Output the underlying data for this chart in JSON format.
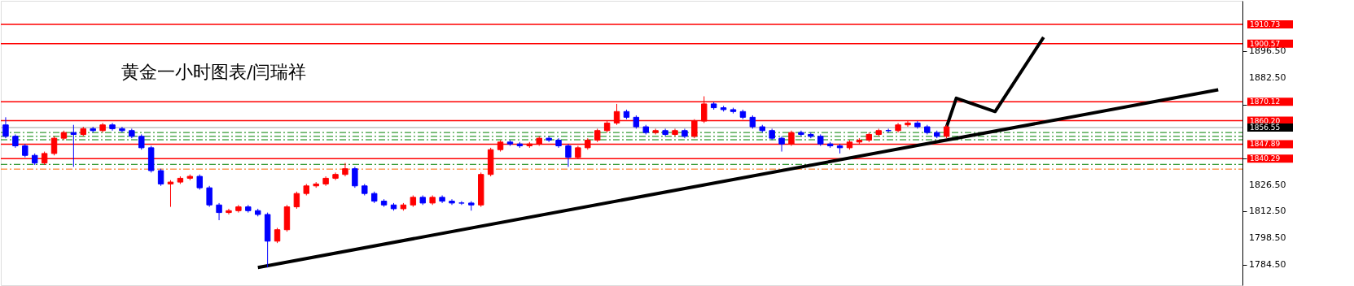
{
  "chart_data": {
    "type": "candlestick",
    "title": "黄金一小时图表/闫瑞祥",
    "categories": [
      null,
      null,
      null,
      null,
      null,
      null,
      null,
      null,
      null,
      null,
      null,
      null,
      null,
      null,
      null,
      null,
      null,
      null,
      null,
      null,
      null,
      null,
      null,
      null,
      null,
      null,
      null,
      null,
      null,
      null,
      null,
      null,
      null,
      null,
      null,
      null,
      null,
      null,
      null,
      null,
      null,
      null,
      null,
      null,
      null,
      null,
      null,
      null,
      null,
      null,
      null,
      null,
      null,
      null,
      null,
      null,
      null,
      null,
      null,
      null,
      null,
      null,
      null,
      null,
      null,
      null,
      null,
      null,
      null,
      null,
      null,
      null,
      null,
      null,
      null,
      null,
      null,
      null,
      null,
      null,
      null,
      null,
      null,
      null,
      null,
      null,
      null,
      null,
      null,
      null,
      null,
      null,
      null,
      null,
      null,
      null,
      null,
      null,
      null,
      null,
      null,
      null,
      null,
      null,
      null,
      null,
      null,
      null,
      null,
      null,
      null,
      null,
      null,
      null,
      null,
      null,
      null,
      null,
      null,
      null,
      null,
      null,
      null,
      null,
      null,
      null,
      null,
      null
    ],
    "ohlc": [
      [
        1858,
        1862,
        1851,
        1852
      ],
      [
        1852,
        1853,
        1846,
        1847
      ],
      [
        1847,
        1848,
        1841,
        1842
      ],
      [
        1842,
        1843,
        1837,
        1838
      ],
      [
        1838,
        1844,
        1837,
        1843
      ],
      [
        1843,
        1852,
        1842,
        1851
      ],
      [
        1851,
        1855,
        1850,
        1854
      ],
      [
        1854,
        1858,
        1836,
        1853
      ],
      [
        1853,
        1857,
        1852,
        1856
      ],
      [
        1856,
        1857,
        1854,
        1855
      ],
      [
        1855,
        1859,
        1854,
        1858
      ],
      [
        1858,
        1859,
        1855,
        1856
      ],
      [
        1856,
        1857,
        1854,
        1855
      ],
      [
        1855,
        1856,
        1851,
        1852
      ],
      [
        1852,
        1853,
        1845,
        1846
      ],
      [
        1846,
        1847,
        1833,
        1834
      ],
      [
        1834,
        1835,
        1826,
        1827
      ],
      [
        1827,
        1829,
        1815,
        1828
      ],
      [
        1828,
        1831,
        1827,
        1830
      ],
      [
        1830,
        1832,
        1829,
        1831
      ],
      [
        1831,
        1832,
        1824,
        1825
      ],
      [
        1825,
        1826,
        1815,
        1816
      ],
      [
        1816,
        1817,
        1808,
        1812
      ],
      [
        1812,
        1814,
        1811,
        1813
      ],
      [
        1813,
        1816,
        1812,
        1815
      ],
      [
        1815,
        1816,
        1812,
        1813
      ],
      [
        1813,
        1814,
        1810,
        1811
      ],
      [
        1811,
        1812,
        1783.2,
        1797
      ],
      [
        1797,
        1804,
        1796,
        1803
      ],
      [
        1803,
        1816,
        1802,
        1815
      ],
      [
        1815,
        1823,
        1814,
        1822
      ],
      [
        1822,
        1827,
        1821,
        1826
      ],
      [
        1826,
        1828,
        1825,
        1827
      ],
      [
        1827,
        1831,
        1826,
        1830
      ],
      [
        1830,
        1833,
        1829,
        1832
      ],
      [
        1832,
        1838,
        1831,
        1835
      ],
      [
        1835,
        1836,
        1825,
        1826
      ],
      [
        1826,
        1827,
        1821,
        1822
      ],
      [
        1822,
        1823,
        1817,
        1818
      ],
      [
        1818,
        1819,
        1815,
        1816
      ],
      [
        1816,
        1817,
        1813,
        1814
      ],
      [
        1814,
        1817,
        1813,
        1816
      ],
      [
        1816,
        1821,
        1815,
        1820
      ],
      [
        1820,
        1821,
        1816,
        1817
      ],
      [
        1817,
        1821,
        1816,
        1820
      ],
      [
        1820,
        1821,
        1817,
        1818
      ],
      [
        1818,
        1819,
        1816,
        1817
      ],
      [
        1817,
        1818,
        1816,
        1817
      ],
      [
        1817,
        1818,
        1813,
        1816
      ],
      [
        1816,
        1833,
        1815,
        1832
      ],
      [
        1832,
        1846,
        1831,
        1845
      ],
      [
        1845,
        1850,
        1844,
        1849
      ],
      [
        1849,
        1850,
        1847,
        1848
      ],
      [
        1848,
        1849,
        1846,
        1847
      ],
      [
        1847,
        1849,
        1846,
        1848
      ],
      [
        1848,
        1852,
        1847,
        1851
      ],
      [
        1851,
        1852,
        1849,
        1850
      ],
      [
        1850,
        1851,
        1846,
        1847
      ],
      [
        1847,
        1848,
        1836,
        1841
      ],
      [
        1841,
        1847,
        1840,
        1846
      ],
      [
        1846,
        1851,
        1845,
        1850
      ],
      [
        1850,
        1856,
        1849,
        1855
      ],
      [
        1855,
        1860,
        1854,
        1859
      ],
      [
        1859,
        1869,
        1858,
        1865
      ],
      [
        1865,
        1866,
        1861,
        1862
      ],
      [
        1862,
        1863,
        1856,
        1857
      ],
      [
        1857,
        1858,
        1853,
        1854
      ],
      [
        1854,
        1856,
        1853,
        1855
      ],
      [
        1855,
        1856,
        1852,
        1853
      ],
      [
        1853,
        1856,
        1852,
        1855
      ],
      [
        1855,
        1856,
        1851,
        1852
      ],
      [
        1852,
        1861,
        1851,
        1860
      ],
      [
        1860,
        1873,
        1859,
        1869
      ],
      [
        1869,
        1870,
        1866,
        1867
      ],
      [
        1867,
        1868,
        1865,
        1866
      ],
      [
        1866,
        1867,
        1864,
        1865
      ],
      [
        1865,
        1866,
        1861,
        1862
      ],
      [
        1862,
        1863,
        1856,
        1857
      ],
      [
        1857,
        1858,
        1854,
        1855
      ],
      [
        1855,
        1856,
        1850,
        1851
      ],
      [
        1851,
        1852,
        1844,
        1848
      ],
      [
        1848,
        1855,
        1847,
        1854
      ],
      [
        1854,
        1855,
        1852,
        1853
      ],
      [
        1853,
        1854,
        1851,
        1852
      ],
      [
        1852,
        1853,
        1847,
        1848
      ],
      [
        1848,
        1849,
        1846,
        1847
      ],
      [
        1847,
        1848,
        1843,
        1846
      ],
      [
        1846,
        1850,
        1845,
        1849
      ],
      [
        1849,
        1851,
        1848,
        1850
      ],
      [
        1850,
        1854,
        1849,
        1853
      ],
      [
        1853,
        1856,
        1852,
        1855
      ],
      [
        1855,
        1856,
        1854,
        1855
      ],
      [
        1855,
        1859,
        1854,
        1858
      ],
      [
        1858,
        1860,
        1857,
        1859
      ],
      [
        1859,
        1860,
        1856,
        1857
      ],
      [
        1857,
        1858,
        1853,
        1854
      ],
      [
        1854,
        1855,
        1851,
        1852
      ],
      [
        1852,
        1858,
        1851,
        1857
      ],
      null,
      null,
      null,
      null,
      null,
      null,
      null,
      null,
      null,
      null,
      null,
      null,
      null,
      null,
      null,
      null,
      null,
      null,
      null,
      null,
      null,
      null,
      null,
      null,
      null,
      null,
      null,
      null,
      null,
      null
    ],
    "series": [
      {
        "type": "line",
        "color": "#000000",
        "values": [
          null,
          null,
          null,
          null,
          null,
          null,
          null,
          null,
          null,
          null,
          null,
          null,
          null,
          null,
          null,
          null,
          null,
          null,
          null,
          null,
          null,
          null,
          null,
          null,
          null,
          null,
          1783.2,
          null,
          null,
          null,
          null,
          null,
          null,
          null,
          null,
          null,
          null,
          null,
          null,
          null,
          null,
          null,
          null,
          null,
          null,
          null,
          null,
          null,
          null,
          null,
          null,
          null,
          null,
          null,
          null,
          null,
          null,
          null,
          null,
          null,
          null,
          null,
          null,
          null,
          null,
          null,
          null,
          null,
          null,
          null,
          null,
          null,
          null,
          null,
          null,
          null,
          null,
          null,
          null,
          null,
          null,
          null,
          null,
          null,
          null,
          null,
          null,
          null,
          null,
          null,
          null,
          null,
          null,
          null,
          null,
          null,
          null,
          null,
          null,
          null,
          null,
          null,
          null,
          null,
          null,
          null,
          null,
          null,
          null,
          null,
          null,
          null,
          null,
          null,
          null,
          null,
          null,
          null,
          null,
          null,
          null,
          null,
          null,
          null,
          null,
          1876.4,
          null,
          null
        ]
      },
      {
        "type": "line",
        "color": "#000000",
        "values": [
          null,
          null,
          null,
          null,
          null,
          null,
          null,
          null,
          null,
          null,
          null,
          null,
          null,
          null,
          null,
          null,
          null,
          null,
          null,
          null,
          null,
          null,
          null,
          null,
          null,
          null,
          null,
          null,
          null,
          null,
          null,
          null,
          null,
          null,
          null,
          null,
          null,
          null,
          null,
          null,
          null,
          null,
          null,
          null,
          null,
          null,
          null,
          null,
          null,
          null,
          null,
          null,
          null,
          null,
          null,
          null,
          null,
          null,
          null,
          null,
          null,
          null,
          null,
          null,
          null,
          null,
          null,
          null,
          null,
          null,
          null,
          null,
          null,
          null,
          null,
          null,
          null,
          null,
          null,
          null,
          null,
          null,
          null,
          null,
          null,
          null,
          null,
          null,
          null,
          null,
          null,
          null,
          null,
          null,
          null,
          null,
          null,
          1857,
          1872,
          null,
          null,
          null,
          1865,
          null,
          null,
          null,
          null,
          1904,
          null,
          null,
          null,
          null,
          null,
          null,
          null,
          null,
          null,
          null,
          null,
          null,
          null,
          null,
          null,
          null,
          null,
          null,
          null,
          null
        ]
      }
    ],
    "colors": [
      "#0000ff",
      "#0000ff",
      "#0000ff",
      "#0000ff",
      "#ff0000",
      "#ff0000",
      "#ff0000",
      "#0000ff",
      "#ff0000",
      "#0000ff",
      "#ff0000",
      "#0000ff",
      "#0000ff",
      "#0000ff",
      "#0000ff",
      "#0000ff",
      "#0000ff",
      "#ff0000",
      "#ff0000",
      "#ff0000",
      "#0000ff",
      "#0000ff",
      "#0000ff",
      "#ff0000",
      "#ff0000",
      "#0000ff",
      "#0000ff",
      "#0000ff",
      "#ff0000",
      "#ff0000",
      "#ff0000",
      "#ff0000",
      "#ff0000",
      "#ff0000",
      "#ff0000",
      "#ff0000",
      "#0000ff",
      "#0000ff",
      "#0000ff",
      "#0000ff",
      "#0000ff",
      "#ff0000",
      "#ff0000",
      "#0000ff",
      "#ff0000",
      "#0000ff",
      "#0000ff",
      "#0000ff",
      "#0000ff",
      "#ff0000",
      "#ff0000",
      "#ff0000",
      "#0000ff",
      "#0000ff",
      "#ff0000",
      "#ff0000",
      "#0000ff",
      "#0000ff",
      "#0000ff",
      "#ff0000",
      "#ff0000",
      "#ff0000",
      "#ff0000",
      "#ff0000",
      "#0000ff",
      "#0000ff",
      "#0000ff",
      "#ff0000",
      "#0000ff",
      "#ff0000",
      "#0000ff",
      "#ff0000",
      "#ff0000",
      "#0000ff",
      "#0000ff",
      "#0000ff",
      "#0000ff",
      "#0000ff",
      "#0000ff",
      "#0000ff",
      "#0000ff",
      "#ff0000",
      "#0000ff",
      "#0000ff",
      "#0000ff",
      "#0000ff",
      "#0000ff",
      "#ff0000",
      "#ff0000",
      "#ff0000",
      "#ff0000",
      "#0000ff",
      "#ff0000",
      "#ff0000",
      "#0000ff",
      "#0000ff",
      "#0000ff",
      "#ff0000",
      null,
      null,
      null,
      null,
      null,
      null,
      null,
      null,
      null,
      null,
      null,
      null,
      null,
      null,
      null,
      null,
      null,
      null,
      null,
      null,
      null,
      null,
      null,
      null,
      null,
      null,
      null,
      null,
      null,
      null
    ],
    "ylim": [
      1773.9,
      1923.1
    ],
    "yticks": [
      {
        "value": 1784.5,
        "label": "1784.50"
      },
      {
        "value": 1798.5,
        "label": "1798.50"
      },
      {
        "value": 1812.5,
        "label": "1812.50"
      },
      {
        "value": 1826.5,
        "label": "1826.50"
      },
      {
        "value": 1840.5,
        "label": null
      },
      {
        "value": 1854.5,
        "label": null
      },
      {
        "value": 1868.5,
        "label": null
      },
      {
        "value": 1882.5,
        "label": "1882.50"
      },
      {
        "value": 1896.5,
        "label": "1896.50"
      },
      {
        "value": 1910.5,
        "label": null
      }
    ],
    "tick_labels": "y",
    "grid": false,
    "ref_lines": [
      {
        "axis": "y",
        "value": 1910.73,
        "label": "1910.73",
        "color": "#ff0000"
      },
      {
        "axis": "y",
        "value": 1900.57,
        "label": "1900.57",
        "color": "#ff0000"
      },
      {
        "axis": "y",
        "value": 1870.12,
        "label": "1870.12",
        "color": "#ff0000"
      },
      {
        "axis": "y",
        "value": 1860.2,
        "label": "1860.20",
        "color": "#ff0000"
      },
      {
        "axis": "y",
        "value": 1856.55,
        "label": "1856.55",
        "color": "#c0c0c0"
      },
      {
        "axis": "y",
        "value": 1847.89,
        "label": "1847.89",
        "color": "#ff0000"
      },
      {
        "axis": "y",
        "value": 1840.29,
        "label": "1840.29",
        "color": "#ff0000"
      },
      {
        "axis": "y",
        "value": 1854.0,
        "color": "#008000",
        "line_style": "dashed"
      },
      {
        "axis": "y",
        "value": 1852.0,
        "color": "#008000",
        "line_style": "dashed"
      },
      {
        "axis": "y",
        "value": 1850.2,
        "color": "#008000",
        "line_style": "dashed"
      },
      {
        "axis": "y",
        "value": 1837.3,
        "color": "#008000",
        "line_style": "dashed"
      },
      {
        "axis": "y",
        "value": 1834.8,
        "color": "#ff6600",
        "line_style": "dashed"
      }
    ]
  }
}
